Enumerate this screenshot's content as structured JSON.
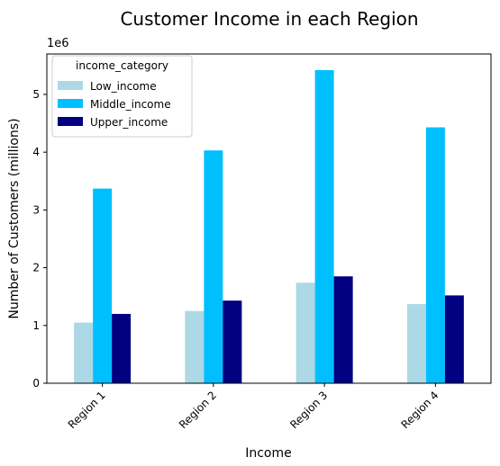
{
  "chart_data": {
    "type": "bar",
    "title": "Customer Income in each Region",
    "xlabel": "Income",
    "ylabel": "Number of Customers (millions)",
    "y_offset_label": "1e6",
    "categories": [
      "Region 1",
      "Region 2",
      "Region 3",
      "Region 4"
    ],
    "ylim": [
      0,
      5700000
    ],
    "yticks": [
      {
        "value": 0,
        "label": "0"
      },
      {
        "value": 1000000,
        "label": "1"
      },
      {
        "value": 2000000,
        "label": "2"
      },
      {
        "value": 3000000,
        "label": "3"
      },
      {
        "value": 4000000,
        "label": "4"
      },
      {
        "value": 5000000,
        "label": "5"
      }
    ],
    "legend": {
      "title": "income_category",
      "position": "top-left"
    },
    "grid": false,
    "series": [
      {
        "name": "Low_income",
        "color": "#add8e6",
        "values": [
          1050000,
          1250000,
          1740000,
          1370000
        ]
      },
      {
        "name": "Middle_income",
        "color": "#00bfff",
        "values": [
          3370000,
          4030000,
          5420000,
          4430000
        ]
      },
      {
        "name": "Upper_income",
        "color": "#000080",
        "values": [
          1200000,
          1430000,
          1850000,
          1520000
        ]
      }
    ]
  }
}
